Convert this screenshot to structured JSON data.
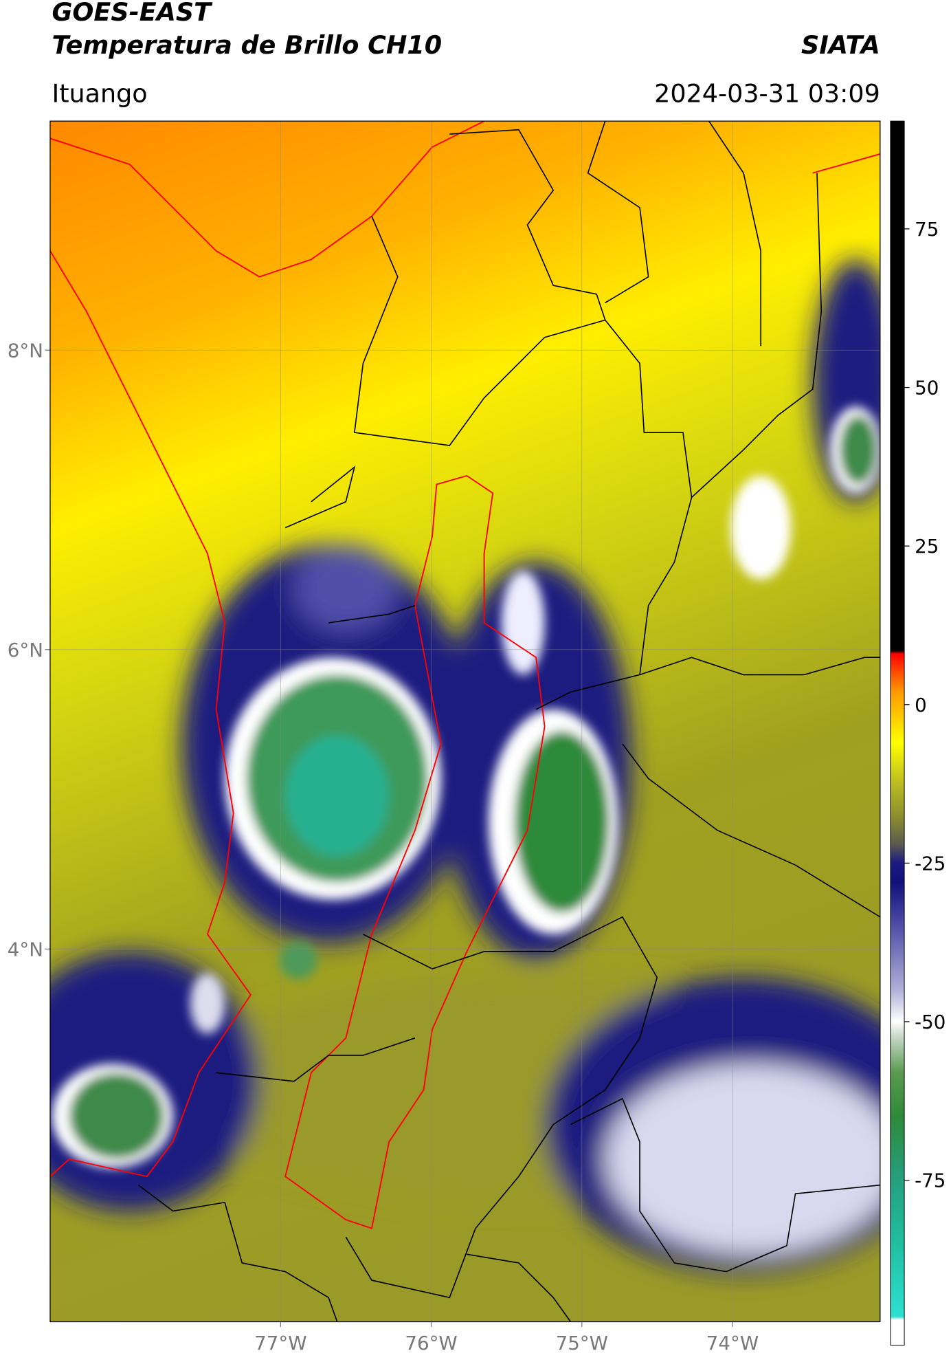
{
  "header": {
    "title": "GOES-EAST",
    "subtitle": "Temperatura de Brillo CH10",
    "source": "SIATA",
    "location": "Ituango",
    "datetime": "2024-03-31 03:09"
  },
  "map": {
    "xlim": [
      -78.53,
      -73.02
    ],
    "ylim": [
      1.51,
      9.53
    ],
    "xticks": [
      {
        "value": -77,
        "label": "77°W"
      },
      {
        "value": -76,
        "label": "76°W"
      },
      {
        "value": -75,
        "label": "75°W"
      },
      {
        "value": -74,
        "label": "74°W"
      }
    ],
    "yticks": [
      {
        "value": 4,
        "label": "4°N"
      },
      {
        "value": 6,
        "label": "6°N"
      },
      {
        "value": 8,
        "label": "8°N"
      }
    ],
    "grid": true
  },
  "colorbar": {
    "lim": [
      -101,
      92
    ],
    "ticks": [
      -75,
      -50,
      -25,
      0,
      25,
      50,
      75
    ],
    "colormap": [
      [
        -101,
        "#ffffff"
      ],
      [
        -97,
        "#ffffff"
      ],
      [
        -96.5,
        "#2de0d0"
      ],
      [
        -85,
        "#1fbf9f"
      ],
      [
        -75,
        "#25a080"
      ],
      [
        -65,
        "#2e8a3a"
      ],
      [
        -58,
        "#5a9a50"
      ],
      [
        -52,
        "#cfdccf"
      ],
      [
        -50,
        "#ffffff"
      ],
      [
        -45,
        "#b0b0d8"
      ],
      [
        -35,
        "#5050a8"
      ],
      [
        -28,
        "#10107a"
      ],
      [
        -25,
        "#1a1a80"
      ],
      [
        -22,
        "#5a5a50"
      ],
      [
        -18,
        "#8a8a30"
      ],
      [
        -12,
        "#c0c020"
      ],
      [
        -6,
        "#ffff00"
      ],
      [
        -2,
        "#ffcc00"
      ],
      [
        2,
        "#ff9900"
      ],
      [
        5,
        "#ff5000"
      ],
      [
        8,
        "#ff0000"
      ],
      [
        8.5,
        "#000000"
      ],
      [
        92,
        "#000000"
      ]
    ]
  }
}
